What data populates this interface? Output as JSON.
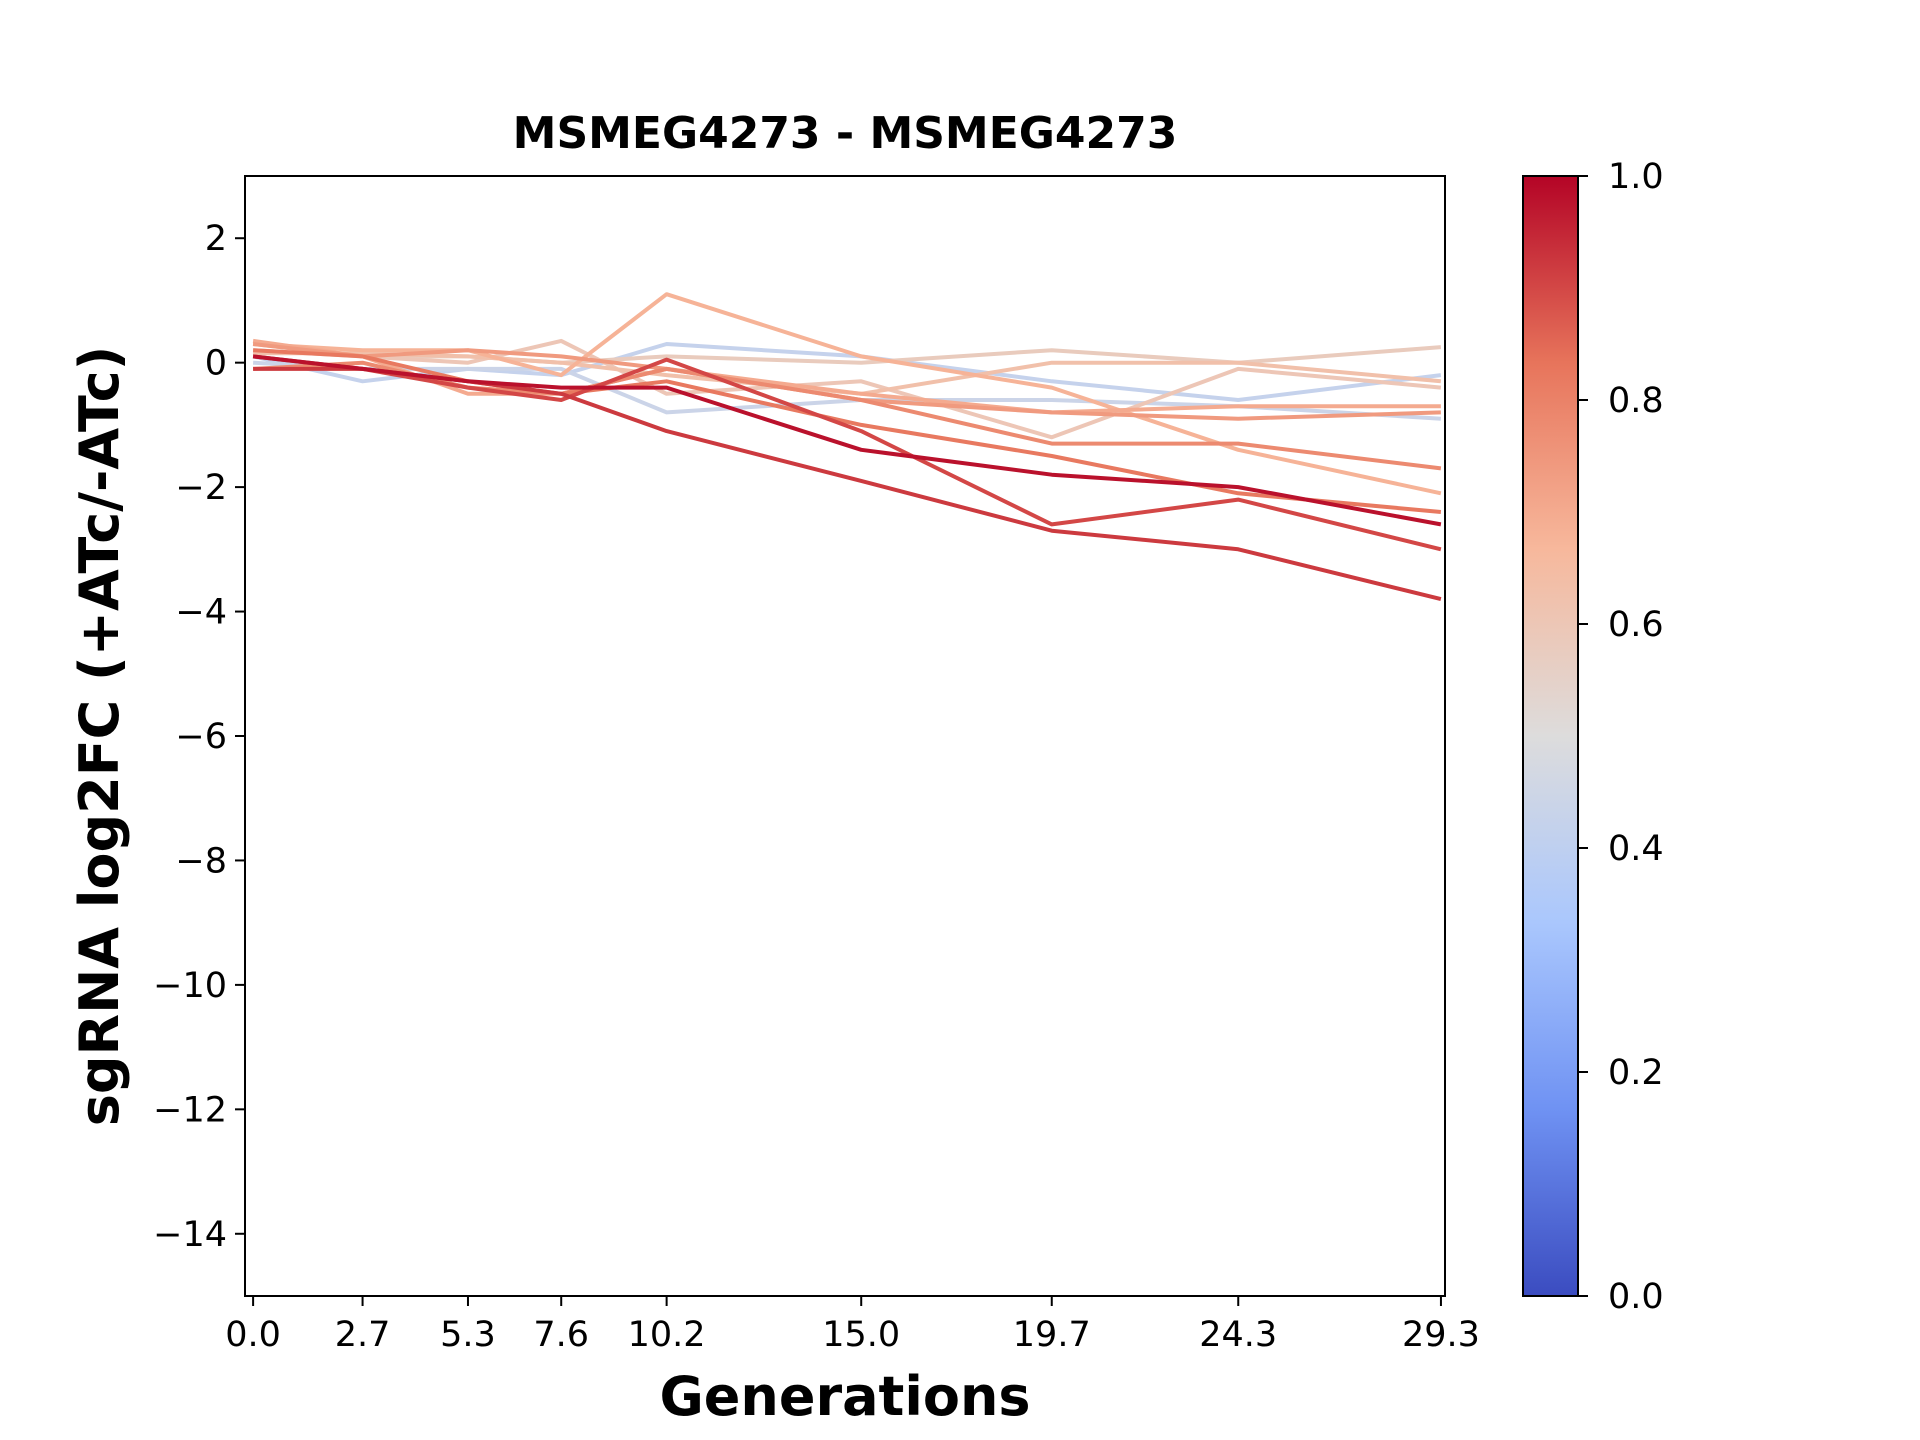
{
  "chart_data": {
    "type": "line",
    "title": "MSMEG4273 - MSMEG4273",
    "xlabel": "Generations",
    "ylabel": "sgRNA log2FC (+ATc/-ATc)",
    "x": [
      0.0,
      2.7,
      5.3,
      7.6,
      10.2,
      15.0,
      19.7,
      24.3,
      29.3
    ],
    "x_tick_labels": [
      "0.0",
      "2.7",
      "5.3",
      "7.6",
      "10.2",
      "15.0",
      "19.7",
      "24.3",
      "29.3"
    ],
    "xlim": [
      -0.2,
      29.4
    ],
    "ylim": [
      -15,
      3
    ],
    "y_ticks": [
      2,
      0,
      -2,
      -4,
      -6,
      -8,
      -10,
      -12,
      -14
    ],
    "y_tick_labels": [
      "2",
      "0",
      "−2",
      "−4",
      "−6",
      "−8",
      "−10",
      "−12",
      "−14"
    ],
    "grid": false,
    "colormap": "coolwarm",
    "colorbar": {
      "range": [
        0,
        1
      ],
      "ticks": [
        0.0,
        0.2,
        0.4,
        0.6,
        0.8,
        1.0
      ],
      "tick_labels": [
        "0.0",
        "0.2",
        "0.4",
        "0.6",
        "0.8",
        "1.0"
      ],
      "stops": [
        "#3b4cc0",
        "#6f92f3",
        "#aac7fd",
        "#dddcdc",
        "#f7b89c",
        "#e7745b",
        "#b40426"
      ]
    },
    "series": [
      {
        "score": 0.42,
        "values": [
          0.1,
          -0.3,
          -0.1,
          -0.2,
          0.3,
          0.1,
          -0.3,
          -0.6,
          -0.2
        ]
      },
      {
        "score": 0.44,
        "values": [
          0.0,
          -0.1,
          -0.1,
          -0.1,
          -0.8,
          -0.6,
          -0.6,
          -0.7,
          -0.9
        ]
      },
      {
        "score": 0.58,
        "values": [
          0.2,
          0.1,
          0.1,
          0.0,
          0.1,
          0.0,
          0.2,
          0.0,
          0.25
        ]
      },
      {
        "score": 0.6,
        "values": [
          0.3,
          0.1,
          0.0,
          0.35,
          -0.5,
          -0.3,
          -1.2,
          -0.1,
          -0.4
        ]
      },
      {
        "score": 0.63,
        "values": [
          0.15,
          0.15,
          0.1,
          0.0,
          -0.2,
          -0.5,
          0.0,
          0.0,
          -0.3
        ]
      },
      {
        "score": 0.68,
        "values": [
          0.3,
          0.2,
          0.2,
          -0.2,
          1.1,
          0.1,
          -0.4,
          -1.4,
          -2.1
        ]
      },
      {
        "score": 0.7,
        "values": [
          0.35,
          0.1,
          -0.5,
          -0.5,
          -0.1,
          -0.5,
          -0.8,
          -0.7,
          -0.7
        ]
      },
      {
        "score": 0.74,
        "values": [
          0.3,
          0.1,
          0.2,
          0.1,
          -0.1,
          -0.6,
          -0.8,
          -0.9,
          -0.8
        ]
      },
      {
        "score": 0.78,
        "values": [
          -0.1,
          0.0,
          -0.4,
          -0.5,
          -0.1,
          -0.6,
          -1.3,
          -1.3,
          -1.7
        ]
      },
      {
        "score": 0.82,
        "values": [
          0.2,
          0.1,
          -0.3,
          -0.5,
          -0.3,
          -1.0,
          -1.5,
          -2.1,
          -2.4
        ]
      },
      {
        "score": 0.9,
        "values": [
          0.1,
          -0.1,
          -0.4,
          -0.6,
          0.05,
          -1.1,
          -2.6,
          -2.2,
          -3.0
        ]
      },
      {
        "score": 0.92,
        "values": [
          -0.1,
          -0.1,
          -0.3,
          -0.5,
          -1.1,
          -1.9,
          -2.7,
          -3.0,
          -3.8
        ]
      },
      {
        "score": 0.98,
        "values": [
          0.1,
          -0.1,
          -0.3,
          -0.4,
          -0.4,
          -1.4,
          -1.8,
          -2.0,
          -2.6
        ]
      }
    ]
  }
}
